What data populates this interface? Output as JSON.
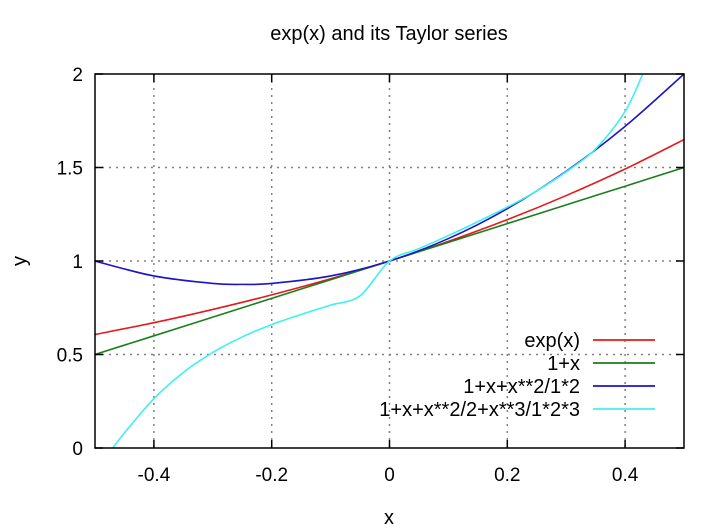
{
  "chart_data": {
    "type": "line",
    "title": "exp(x) and its Taylor series",
    "xlabel": "x",
    "ylabel": "y",
    "xlim": [
      -0.5,
      0.5
    ],
    "ylim": [
      0,
      2
    ],
    "x_ticks": [
      -0.4,
      -0.2,
      0,
      0.2,
      0.4
    ],
    "x_tick_labels": [
      "-0.4",
      "-0.2",
      "0",
      "0.2",
      "0.4"
    ],
    "y_ticks": [
      0,
      0.5,
      1,
      1.5,
      2
    ],
    "y_tick_labels": [
      "0",
      "0.5",
      "1",
      "1.5",
      "2"
    ],
    "grid": true,
    "legend_position": "bottom-right",
    "series": [
      {
        "name": "exp(x)",
        "color": "#e41a1c",
        "x": [
          -0.5,
          -0.4,
          -0.3,
          -0.2,
          -0.1,
          0,
          0.1,
          0.2,
          0.3,
          0.4,
          0.5
        ],
        "y": [
          0.607,
          0.67,
          0.741,
          0.819,
          0.905,
          1.0,
          1.105,
          1.221,
          1.35,
          1.492,
          1.649
        ]
      },
      {
        "name": "1+x",
        "color": "#1a7f1a",
        "x": [
          -0.5,
          -0.4,
          -0.3,
          -0.2,
          -0.1,
          0,
          0.1,
          0.2,
          0.3,
          0.4,
          0.5
        ],
        "y": [
          0.5,
          0.6,
          0.7,
          0.8,
          0.9,
          1.0,
          1.1,
          1.2,
          1.3,
          1.4,
          1.5
        ]
      },
      {
        "name": "1+x+x**2/1*2",
        "color": "#1c14c8",
        "x": [
          -0.5,
          -0.4,
          -0.3,
          -0.25,
          -0.2,
          -0.1,
          0,
          0.1,
          0.2,
          0.3,
          0.4,
          0.5
        ],
        "y": [
          1.0,
          0.92,
          0.88,
          0.875,
          0.88,
          0.92,
          1.0,
          1.12,
          1.28,
          1.48,
          1.72,
          2.0
        ]
      },
      {
        "name": "1+x+x**2/2+x**3/1*2*3",
        "color": "#3ff0f0",
        "x": [
          -0.47,
          -0.45,
          -0.4,
          -0.35,
          -0.3,
          -0.25,
          -0.2,
          -0.15,
          -0.1,
          -0.05,
          0,
          0.05,
          0.1,
          0.15,
          0.2,
          0.25,
          0.3,
          0.35,
          0.4,
          0.43
        ],
        "y": [
          0.0,
          0.081,
          0.264,
          0.404,
          0.511,
          0.594,
          0.66,
          0.714,
          0.764,
          0.814,
          1.0,
          1.066,
          1.136,
          1.21,
          1.288,
          1.375,
          1.477,
          1.6,
          1.8,
          2.0
        ]
      }
    ]
  }
}
